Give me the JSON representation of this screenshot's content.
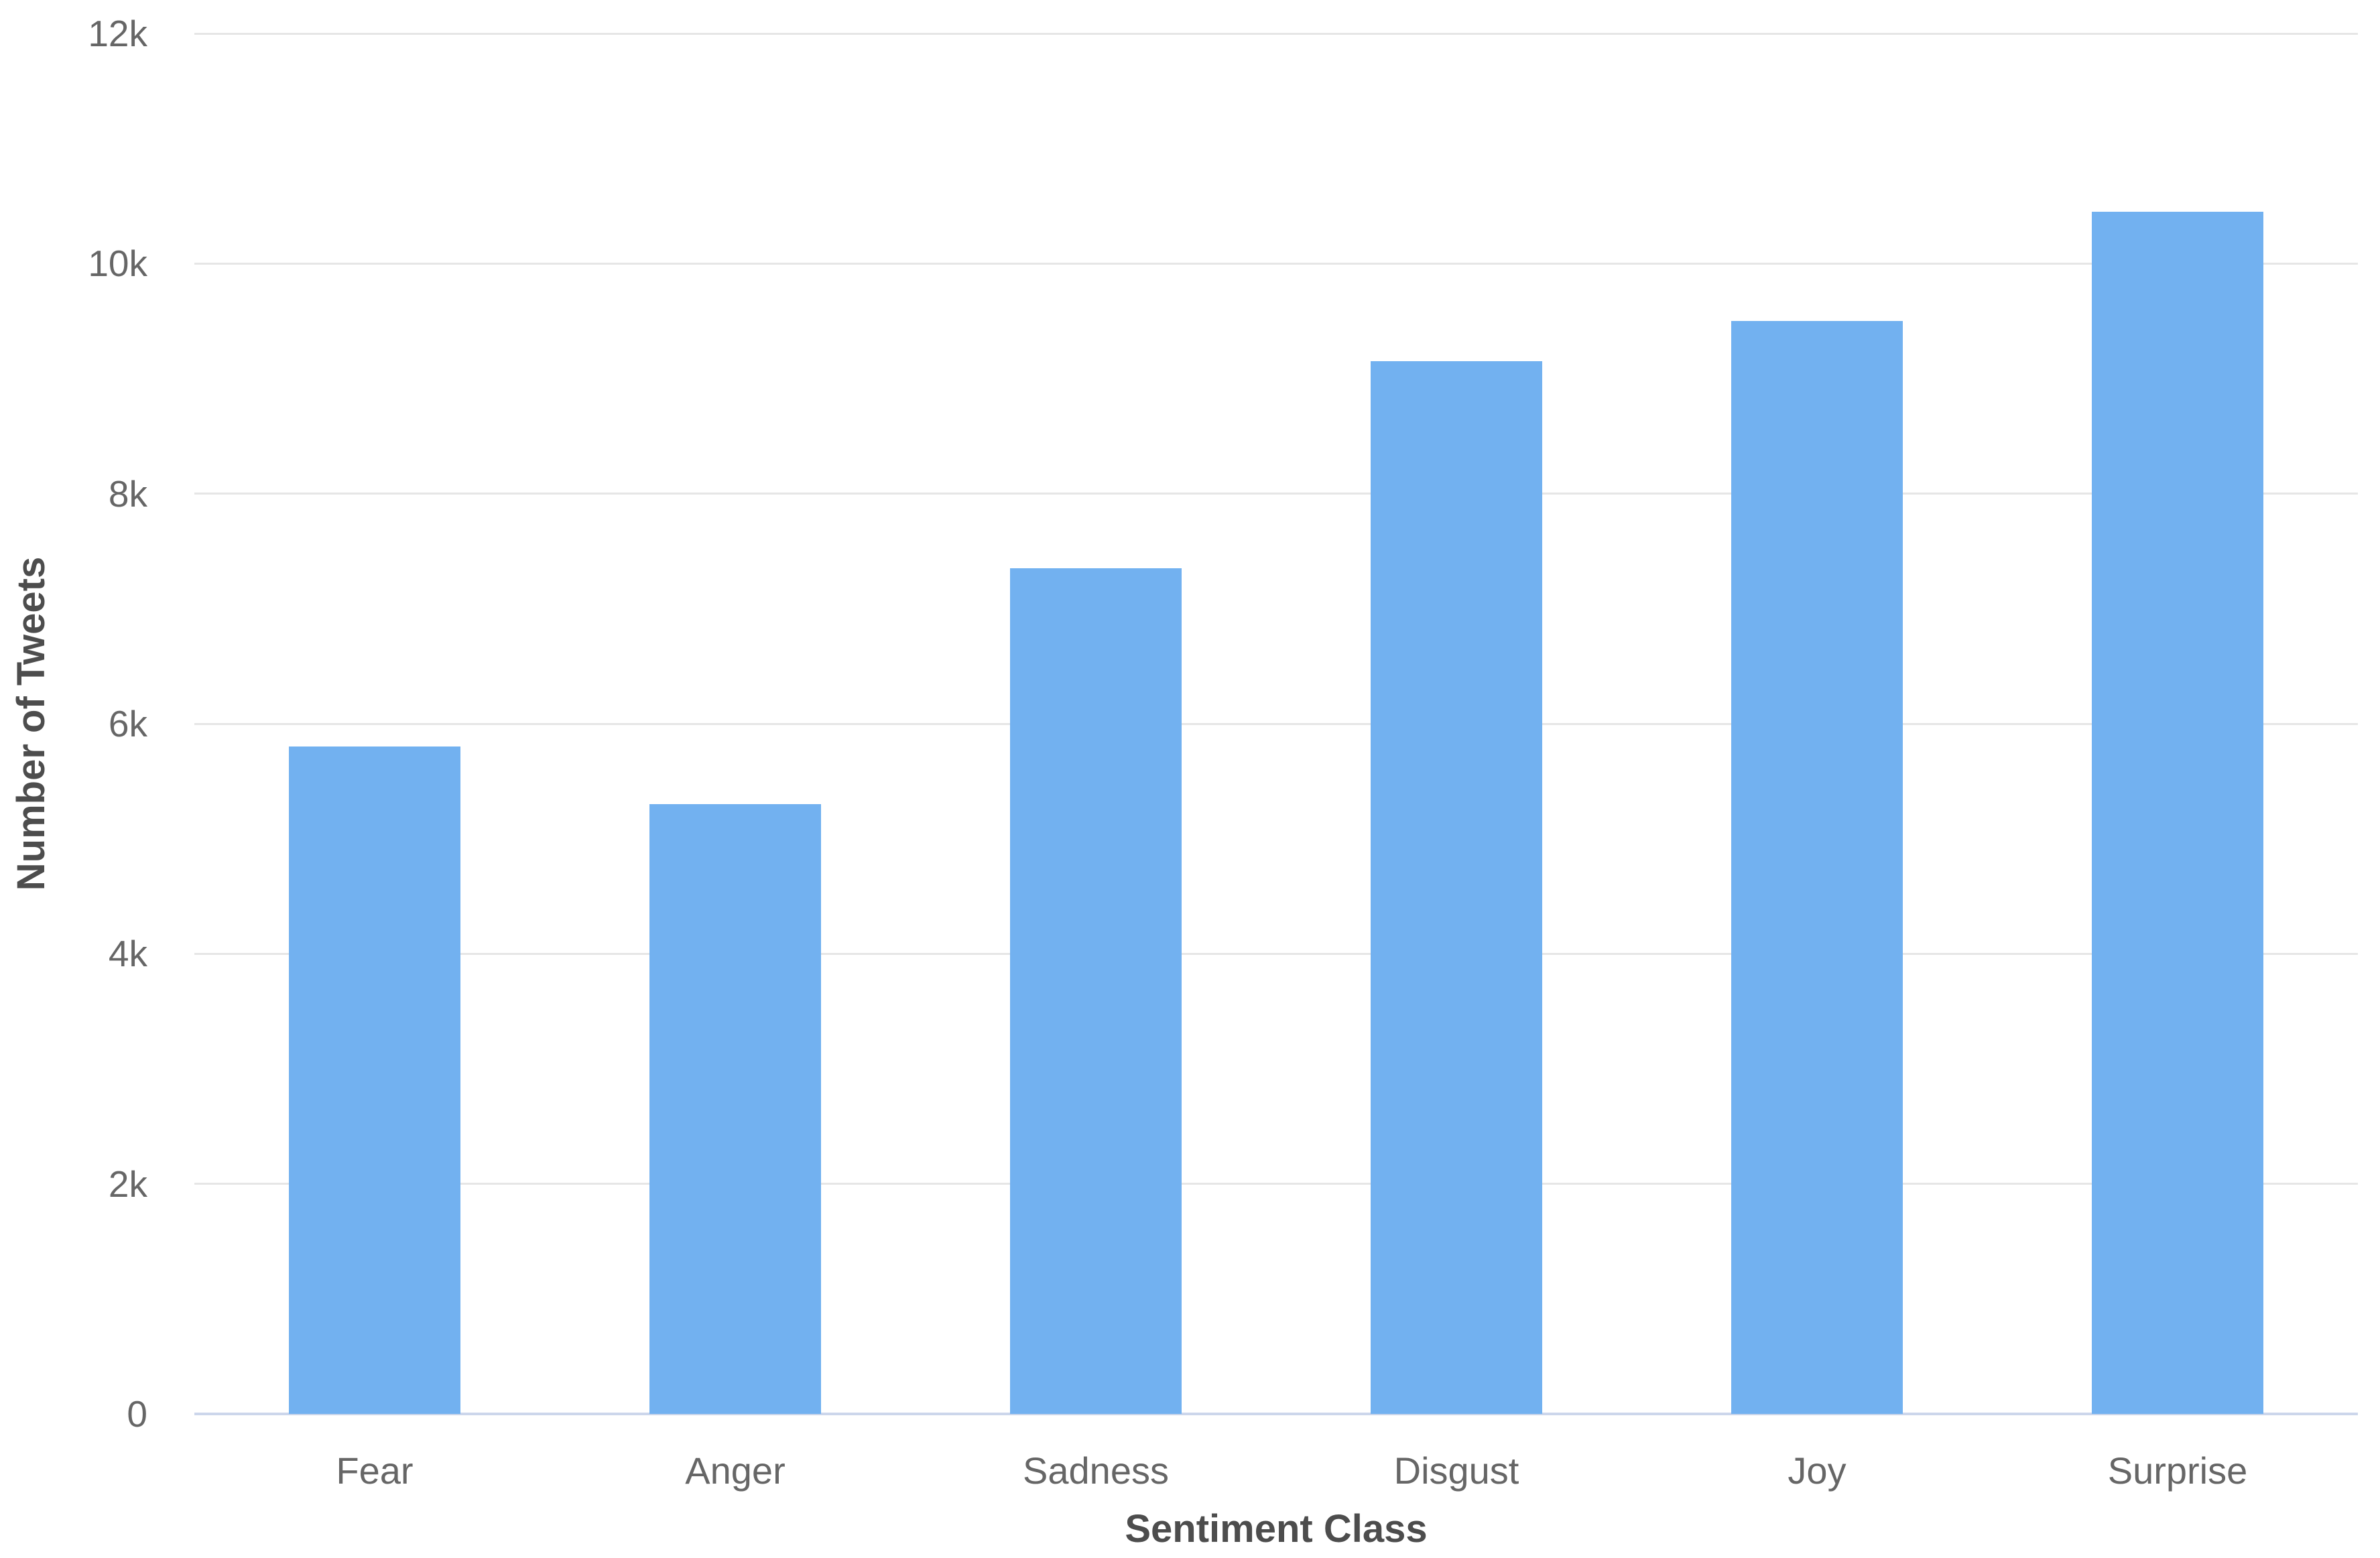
{
  "chart_data": {
    "type": "bar",
    "categories": [
      "Fear",
      "Anger",
      "Sadness",
      "Disgust",
      "Joy",
      "Surprise"
    ],
    "values": [
      5800,
      5300,
      7350,
      9150,
      9500,
      10450
    ],
    "xlabel": "Sentiment Class",
    "ylabel": "Number of Tweets",
    "ylim": [
      0,
      12000
    ],
    "ytick_values": [
      0,
      2000,
      4000,
      6000,
      8000,
      10000,
      12000
    ],
    "ytick_labels": [
      "0",
      "2k",
      "4k",
      "6k",
      "8k",
      "10k",
      "12k"
    ],
    "grid": true,
    "legend": "none",
    "bar_color": "#72b1f0",
    "grid_color": "#e6e6e6",
    "axis_line_color": "#ccd6eb",
    "tick_label_color": "#666666",
    "axis_title_color": "#4d4d4d",
    "background_color": "#ffffff"
  }
}
